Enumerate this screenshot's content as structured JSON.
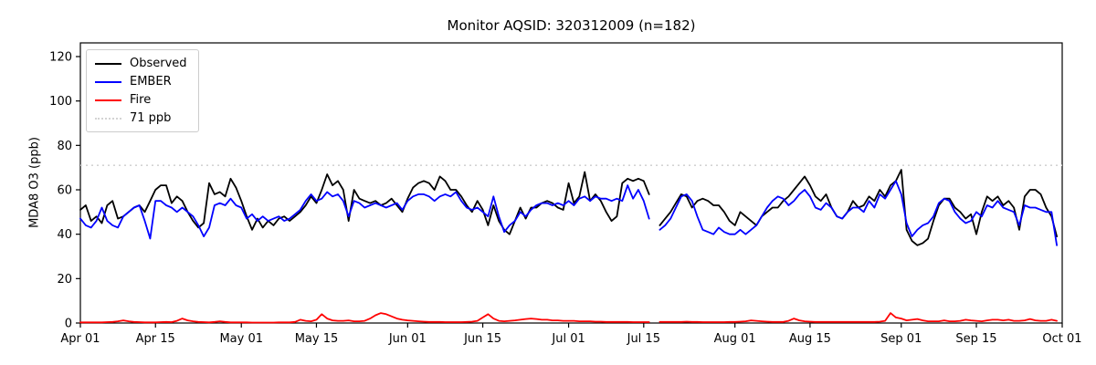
{
  "window": {
    "title": "Monitor AQSID: 320312009 (n=182)"
  },
  "legend": {
    "items": [
      {
        "label": "Observed",
        "color": "#000000",
        "style": "solid"
      },
      {
        "label": "EMBER",
        "color": "#0000ff",
        "style": "solid"
      },
      {
        "label": "Fire",
        "color": "#ff0000",
        "style": "solid"
      },
      {
        "label": "71 ppb",
        "color": "#d3d3d3",
        "style": "dotted"
      }
    ],
    "position": "upper left"
  },
  "chart_data": {
    "type": "line",
    "title": "Monitor AQSID: 320312009 (n=182)",
    "xlabel": "",
    "ylabel": "MDA8 O3 (ppb)",
    "n_points": 182,
    "grid": false,
    "ylim": [
      0,
      126
    ],
    "y_ticks": [
      0,
      20,
      40,
      60,
      80,
      100,
      120
    ],
    "x_tick_labels": [
      "Apr 01",
      "Apr 15",
      "May 01",
      "May 15",
      "Jun 01",
      "Jun 15",
      "Jul 01",
      "Jul 15",
      "Aug 01",
      "Aug 15",
      "Sep 01",
      "Sep 15",
      "Oct 01"
    ],
    "x_tick_days": [
      0,
      14,
      30,
      44,
      61,
      75,
      91,
      105,
      122,
      136,
      153,
      167,
      183
    ],
    "x_range_days": 183,
    "missing_day_index": 107,
    "threshold": {
      "label": "71 ppb",
      "value": 71,
      "color": "#d3d3d3",
      "style": "dotted"
    },
    "series": [
      {
        "name": "Observed",
        "color": "#000000",
        "values": [
          51,
          53,
          46,
          48,
          45,
          53,
          55,
          47,
          48,
          50,
          52,
          53,
          50,
          55,
          60,
          62,
          62,
          54,
          57,
          55,
          50,
          46,
          43,
          45,
          63,
          58,
          59,
          57,
          65,
          61,
          55,
          48,
          42,
          47,
          43,
          46,
          44,
          47,
          48,
          46,
          48,
          50,
          53,
          57,
          54,
          60,
          67,
          62,
          64,
          60,
          46,
          60,
          56,
          55,
          54,
          55,
          53,
          54,
          56,
          53,
          50,
          56,
          61,
          63,
          64,
          63,
          60,
          66,
          64,
          60,
          60,
          57,
          53,
          50,
          55,
          51,
          44,
          53,
          46,
          42,
          40,
          46,
          52,
          47,
          52,
          52,
          54,
          55,
          54,
          52,
          51,
          63,
          54,
          57,
          68,
          55,
          58,
          55,
          50,
          46,
          48,
          63,
          65,
          64,
          65,
          64,
          58,
          null,
          44,
          47,
          50,
          54,
          58,
          57,
          52,
          55,
          56,
          55,
          53,
          53,
          50,
          46,
          44,
          50,
          48,
          46,
          44,
          48,
          50,
          52,
          52,
          55,
          57,
          60,
          63,
          66,
          62,
          57,
          55,
          58,
          52,
          48,
          47,
          50,
          55,
          52,
          53,
          57,
          55,
          60,
          57,
          62,
          64,
          69,
          42,
          37,
          35,
          36,
          38,
          46,
          53,
          56,
          56,
          52,
          50,
          47,
          49,
          40,
          50,
          57,
          55,
          57,
          53,
          55,
          52,
          42,
          57,
          60,
          60,
          58,
          52,
          48,
          39
        ]
      },
      {
        "name": "EMBER",
        "color": "#0000ff",
        "values": [
          47,
          44,
          43,
          46,
          52,
          46,
          44,
          43,
          48,
          50,
          52,
          53,
          46,
          38,
          55,
          55,
          53,
          52,
          50,
          52,
          50,
          48,
          44,
          39,
          43,
          53,
          54,
          53,
          56,
          53,
          52,
          47,
          49,
          46,
          48,
          46,
          47,
          48,
          46,
          47,
          49,
          51,
          55,
          58,
          55,
          56,
          59,
          57,
          58,
          55,
          48,
          55,
          54,
          52,
          53,
          54,
          53,
          52,
          53,
          54,
          51,
          55,
          57,
          58,
          58,
          57,
          55,
          57,
          58,
          57,
          59,
          55,
          52,
          51,
          52,
          50,
          48,
          57,
          48,
          41,
          44,
          46,
          50,
          48,
          51,
          53,
          54,
          54,
          53,
          54,
          53,
          55,
          53,
          56,
          57,
          55,
          57,
          56,
          56,
          55,
          56,
          55,
          62,
          56,
          60,
          55,
          47,
          null,
          42,
          44,
          47,
          52,
          57,
          58,
          55,
          48,
          42,
          41,
          40,
          43,
          41,
          40,
          40,
          42,
          40,
          42,
          44,
          48,
          52,
          55,
          57,
          56,
          53,
          55,
          58,
          60,
          57,
          52,
          51,
          54,
          52,
          48,
          47,
          50,
          52,
          52,
          50,
          55,
          52,
          58,
          56,
          60,
          64,
          58,
          45,
          39,
          42,
          44,
          45,
          48,
          54,
          56,
          55,
          50,
          47,
          45,
          46,
          50,
          48,
          53,
          52,
          55,
          52,
          51,
          50,
          44,
          53,
          52,
          52,
          51,
          50,
          50,
          35
        ]
      },
      {
        "name": "Fire",
        "color": "#ff0000",
        "values": [
          0.3,
          0.3,
          0.3,
          0.3,
          0.3,
          0.4,
          0.5,
          0.8,
          1.2,
          0.8,
          0.5,
          0.4,
          0.3,
          0.3,
          0.3,
          0.4,
          0.5,
          0.4,
          1.0,
          2.0,
          1.2,
          0.8,
          0.5,
          0.4,
          0.3,
          0.5,
          0.8,
          0.5,
          0.3,
          0.3,
          0.3,
          0.3,
          0.2,
          0.2,
          0.2,
          0.2,
          0.2,
          0.3,
          0.3,
          0.3,
          0.5,
          1.5,
          1.0,
          0.8,
          1.5,
          4.0,
          2.0,
          1.2,
          1.0,
          1.0,
          1.2,
          0.8,
          0.8,
          1.0,
          2.0,
          3.5,
          4.5,
          4.0,
          3.0,
          2.0,
          1.5,
          1.2,
          1.0,
          0.8,
          0.6,
          0.5,
          0.5,
          0.5,
          0.4,
          0.4,
          0.4,
          0.4,
          0.5,
          0.6,
          1.0,
          2.5,
          4.0,
          2.0,
          1.0,
          0.8,
          1.0,
          1.2,
          1.5,
          1.8,
          2.0,
          1.8,
          1.5,
          1.5,
          1.2,
          1.2,
          1.0,
          1.0,
          1.0,
          0.8,
          0.8,
          0.8,
          0.6,
          0.6,
          0.5,
          0.5,
          0.5,
          0.5,
          0.5,
          0.4,
          0.4,
          0.4,
          0.4,
          null,
          0.5,
          0.5,
          0.5,
          0.5,
          0.5,
          0.6,
          0.5,
          0.5,
          0.4,
          0.4,
          0.4,
          0.4,
          0.4,
          0.5,
          0.5,
          0.6,
          0.8,
          1.2,
          1.0,
          0.8,
          0.6,
          0.5,
          0.5,
          0.5,
          1.0,
          2.0,
          1.2,
          0.8,
          0.6,
          0.5,
          0.5,
          0.5,
          0.5,
          0.5,
          0.5,
          0.5,
          0.5,
          0.5,
          0.5,
          0.5,
          0.5,
          0.6,
          1.0,
          4.5,
          2.5,
          2.0,
          1.2,
          1.5,
          1.8,
          1.2,
          0.8,
          0.8,
          0.8,
          1.2,
          0.8,
          0.8,
          1.0,
          1.5,
          1.2,
          1.0,
          0.8,
          1.2,
          1.5,
          1.5,
          1.2,
          1.5,
          1.0,
          1.0,
          1.2,
          1.8,
          1.2,
          1.0,
          1.0,
          1.5,
          1.0
        ]
      }
    ]
  }
}
